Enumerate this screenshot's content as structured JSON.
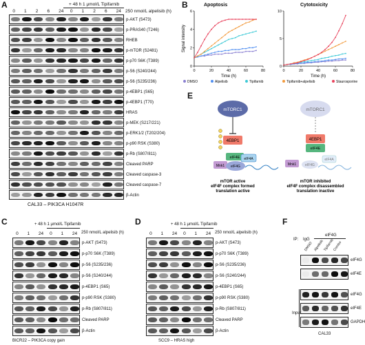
{
  "panel_letters": {
    "A": "A",
    "B": "B",
    "C": "C",
    "D": "D",
    "E": "E",
    "F": "F"
  },
  "panelA": {
    "treat_top": "+ 48 h 1 μmol/L Tipifarnib",
    "conc_label": "250 nmol/L alpelisib (h)",
    "timepoints": [
      "0",
      "1",
      "2",
      "6",
      "24",
      "0",
      "1",
      "2",
      "6",
      "24"
    ],
    "rows": [
      "p-AKT (S473)",
      "p-PRAS40 (T246)",
      "RHEB",
      "p-mTOR (S2481)",
      "p-p70 S6K (T389)",
      "p-S6 (S240/244)",
      "p-S6 (S235/236)",
      "p-4EBP1 (S65)",
      "p-4EBP1 (T70)",
      "HRAS",
      "p-MEK (S217/221)",
      "p-ERK1/2 (T202/204)",
      "p-p90 RSK (S380)",
      "p-Rb (S807/811)",
      "Cleaved PARP",
      "Cleaved caspase-3",
      "Cleaved caspase-7",
      "β-Actin"
    ],
    "caption": "CAL33 – PIK3CA H1047R"
  },
  "panelB": {
    "chart_data": [
      {
        "type": "line",
        "title": "Apoptosis",
        "xlabel": "Time (h)",
        "ylabel": "Signal intensity",
        "xlim": [
          0,
          80
        ],
        "ylim": [
          0,
          6
        ],
        "xticks": [
          0,
          20,
          40,
          60,
          80
        ],
        "yticks": [
          0,
          2,
          4,
          6
        ],
        "x": [
          0,
          4,
          8,
          12,
          16,
          20,
          24,
          28,
          32,
          36,
          40,
          44,
          48,
          52,
          56,
          60,
          64,
          68,
          72
        ],
        "series": [
          {
            "name": "DMSO",
            "color": "#8a7fd1",
            "values": [
              0.9,
              1.0,
              1.1,
              1.1,
              1.2,
              1.2,
              1.3,
              1.3,
              1.3,
              1.4,
              1.4,
              1.4,
              1.5,
              1.5,
              1.5,
              1.6,
              1.6,
              1.6,
              1.7
            ]
          },
          {
            "name": "Alpelisib",
            "color": "#4f8ef0",
            "values": [
              0.9,
              1.0,
              1.1,
              1.2,
              1.3,
              1.4,
              1.5,
              1.6,
              1.6,
              1.7,
              1.7,
              1.8,
              1.8,
              1.8,
              1.9,
              1.9,
              2.0,
              2.0,
              2.1
            ]
          },
          {
            "name": "Tipifarnib",
            "color": "#3cc9d6",
            "values": [
              0.9,
              1.1,
              1.3,
              1.5,
              1.7,
              1.9,
              2.1,
              2.3,
              2.5,
              2.7,
              2.9,
              3.0,
              3.1,
              3.3,
              3.4,
              3.5,
              3.6,
              3.7,
              3.8
            ]
          },
          {
            "name": "Tipifarnib+alpelisib",
            "color": "#f29a3c",
            "values": [
              0.9,
              1.1,
              1.3,
              1.6,
              1.9,
              2.2,
              2.5,
              2.8,
              3.1,
              3.4,
              3.7,
              3.9,
              4.1,
              4.3,
              4.5,
              4.7,
              4.8,
              5.0,
              5.1
            ]
          },
          {
            "name": "Staurosporine",
            "color": "#e8415b",
            "values": [
              0.9,
              1.5,
              2.2,
              2.9,
              3.5,
              4.0,
              4.4,
              4.7,
              4.9,
              5.0,
              5.1,
              5.1,
              5.1,
              5.1,
              5.1,
              5.1,
              5.1,
              5.1,
              5.1
            ]
          }
        ]
      },
      {
        "type": "line",
        "title": "Cytotoxicity",
        "xlabel": "Time (h)",
        "ylabel": "",
        "xlim": [
          0,
          80
        ],
        "ylim": [
          0,
          10
        ],
        "xticks": [
          0,
          20,
          40,
          60,
          80
        ],
        "yticks": [
          0,
          5,
          10
        ],
        "x": [
          0,
          4,
          8,
          12,
          16,
          20,
          24,
          28,
          32,
          36,
          40,
          44,
          48,
          52,
          56,
          60,
          64,
          68,
          72
        ],
        "series": [
          {
            "name": "DMSO",
            "color": "#8a7fd1",
            "values": [
              0.2,
              0.3,
              0.3,
              0.4,
              0.4,
              0.5,
              0.5,
              0.6,
              0.6,
              0.7,
              0.7,
              0.8,
              0.8,
              0.9,
              0.9,
              1.0,
              1.0,
              1.1,
              1.1
            ]
          },
          {
            "name": "Alpelisib",
            "color": "#4f8ef0",
            "values": [
              0.2,
              0.3,
              0.3,
              0.4,
              0.5,
              0.5,
              0.6,
              0.7,
              0.7,
              0.8,
              0.9,
              0.9,
              1.0,
              1.1,
              1.1,
              1.2,
              1.3,
              1.3,
              1.4
            ]
          },
          {
            "name": "Tipifarnib",
            "color": "#3cc9d6",
            "values": [
              0.2,
              0.3,
              0.4,
              0.5,
              0.6,
              0.7,
              0.8,
              0.9,
              1.0,
              1.1,
              1.2,
              1.4,
              1.5,
              1.6,
              1.8,
              1.9,
              2.0,
              2.2,
              2.3
            ]
          },
          {
            "name": "Tipifarnib+alpelisib",
            "color": "#f29a3c",
            "values": [
              0.2,
              0.3,
              0.4,
              0.6,
              0.7,
              0.9,
              1.1,
              1.3,
              1.5,
              1.8,
              2.1,
              2.4,
              2.7,
              3.0,
              3.3,
              3.6,
              3.9,
              4.2,
              4.5
            ]
          },
          {
            "name": "Staurosporine",
            "color": "#e8415b",
            "values": [
              0.2,
              0.3,
              0.4,
              0.5,
              0.6,
              0.8,
              1.0,
              1.2,
              1.5,
              1.8,
              2.1,
              2.5,
              3.0,
              3.6,
              4.3,
              5.2,
              6.4,
              7.7,
              9.2
            ]
          }
        ]
      }
    ],
    "legend": [
      "DMSO",
      "Alpelisib",
      "Tipifarnib",
      "Tipifarnib+alpelisib",
      "Staurosporine"
    ]
  },
  "panelC": {
    "treat_top": "+ 48 h 1 μmol/L Tipifarnib",
    "conc_label": "250 nmol/L alpelisib (h)",
    "timepoints": [
      "0",
      "1",
      "24",
      "0",
      "1",
      "24"
    ],
    "rows": [
      "p-AKT (S473)",
      "p-p70 S6K (T389)",
      "p-S6 (S235/236)",
      "p-S6 (S240/244)",
      "p-4EBP1 (S65)",
      "p-p90 RSK (S380)",
      "p-Rb (S807/811)",
      "Cleaved PARP",
      "β-Actin"
    ],
    "caption": "BICR22 – PIK3CA copy gain"
  },
  "panelD": {
    "treat_top": "+ 48 h 1 μmol/L Tipifarnib",
    "conc_label": "250 nmol/L alpelisib (h)",
    "timepoints": [
      "0",
      "1",
      "24",
      "0",
      "1",
      "24"
    ],
    "rows": [
      "p-AKT (S473)",
      "p-p70 S6K (T389)",
      "p-S6 (S235/236)",
      "p-S6 (S240/244)",
      "p-4EBP1 (S65)",
      "p-p90 RSK (S380)",
      "p-Rb (S807/811)",
      "Cleaved PARP",
      "β-Actin"
    ],
    "caption": "SCC9 – HRAS high"
  },
  "panelE": {
    "left": {
      "mtorc1": "mTORC1",
      "4ebp1": "4EBP1",
      "eif4e": "eIF4E",
      "eif4a": "eIF4A",
      "mnk1": "Mnk1",
      "eif4g": "eIF4G",
      "caption1": "mTOR active",
      "caption2": "eIF4F complex formed",
      "caption3": "translation active"
    },
    "right": {
      "mtorc1": "mTORC1",
      "4ebp1": "4EBP1",
      "eif4e": "eIF4E",
      "eif4a": "eIF4A",
      "mnk1": "Mnk1",
      "eif4g": "eIF4G",
      "caption1": "mTOR inhibited",
      "caption2": "eIF4F complex disassembled",
      "caption3": "translation inactive"
    }
  },
  "panelF": {
    "ip_label": "IP:",
    "igg": "IgG",
    "eif4g_hdr": "eIF4G",
    "lanes": [
      "DMSO",
      "Alpelisib",
      "Tipifarnib",
      "Combo"
    ],
    "ip_rows": [
      "eIF4G",
      "eIF4E"
    ],
    "input_rows": [
      "eIF4G",
      "eIF4E",
      "GAPDH"
    ],
    "input_label": "Input",
    "caption": "CAL33"
  }
}
